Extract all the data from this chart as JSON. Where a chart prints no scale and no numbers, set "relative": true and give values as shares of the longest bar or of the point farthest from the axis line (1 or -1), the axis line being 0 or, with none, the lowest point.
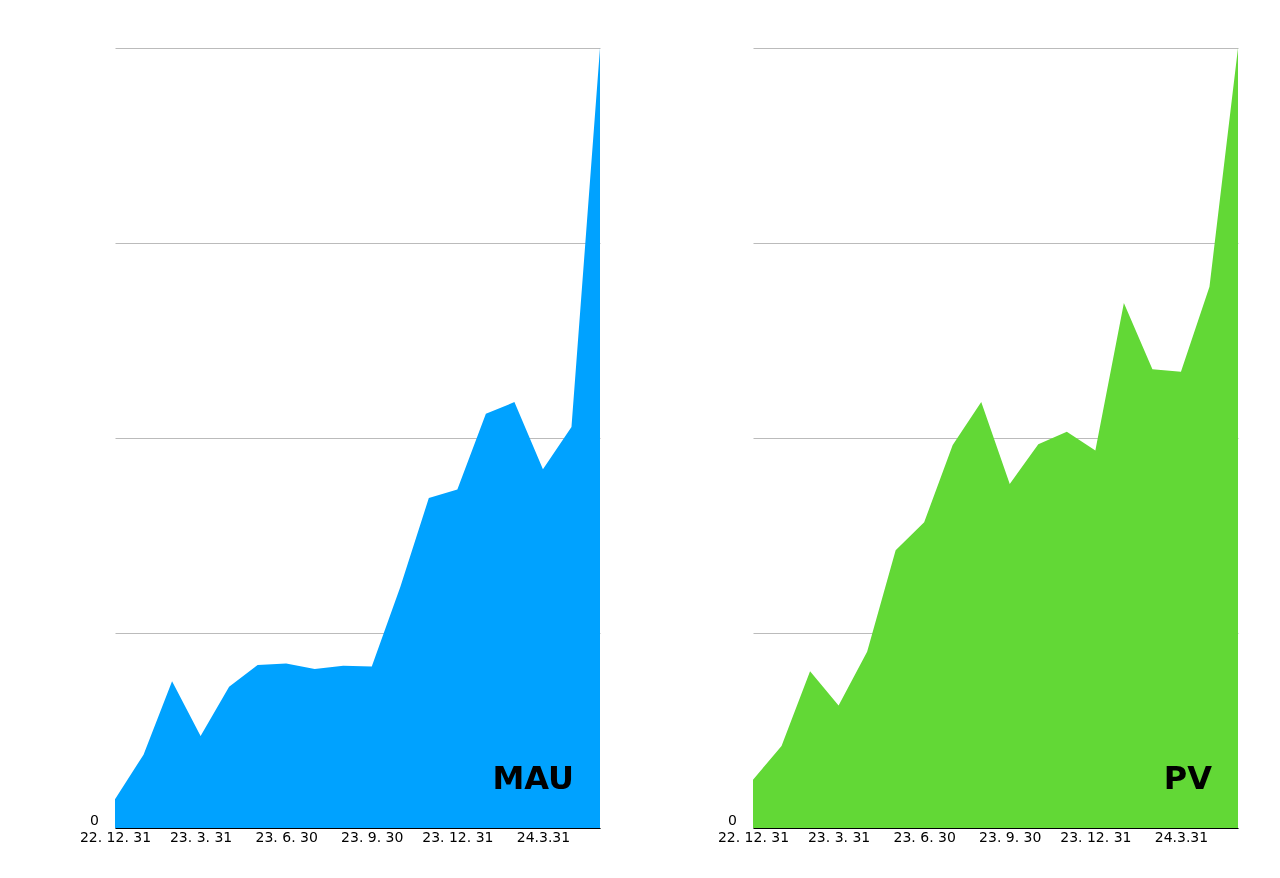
{
  "chart_data": [
    {
      "type": "area",
      "relative": true,
      "grid": "y",
      "categories": [
        "22. 12. 31",
        null,
        null,
        "23. 3. 31",
        null,
        null,
        "23. 6. 30",
        null,
        null,
        "23. 9. 30",
        null,
        null,
        "23. 12. 31",
        null,
        null,
        "24.3.31",
        null,
        null
      ],
      "series": [
        {
          "name": "MAU",
          "color": "#00a2ff",
          "values": [
            0.037,
            0.094,
            0.188,
            0.118,
            0.181,
            0.209,
            0.211,
            0.204,
            0.208,
            0.207,
            0.309,
            0.423,
            0.434,
            0.531,
            0.546,
            0.46,
            0.514,
            1
          ]
        }
      ],
      "annotations": [
        "0"
      ]
    },
    {
      "type": "area",
      "relative": true,
      "grid": "y",
      "categories": [
        "22. 12. 31",
        null,
        null,
        "23. 3. 31",
        null,
        null,
        "23. 6. 30",
        null,
        null,
        "23. 9. 30",
        null,
        null,
        "23. 12. 31",
        null,
        null,
        "24.3.31",
        null,
        null
      ],
      "series": [
        {
          "name": "PV",
          "color": "#62d836",
          "values": [
            0.062,
            0.105,
            0.201,
            0.157,
            0.226,
            0.356,
            0.392,
            0.491,
            0.546,
            0.441,
            0.492,
            0.508,
            0.484,
            0.673,
            0.588,
            0.585,
            0.694,
            1
          ]
        }
      ],
      "annotations": [
        "0"
      ]
    }
  ]
}
